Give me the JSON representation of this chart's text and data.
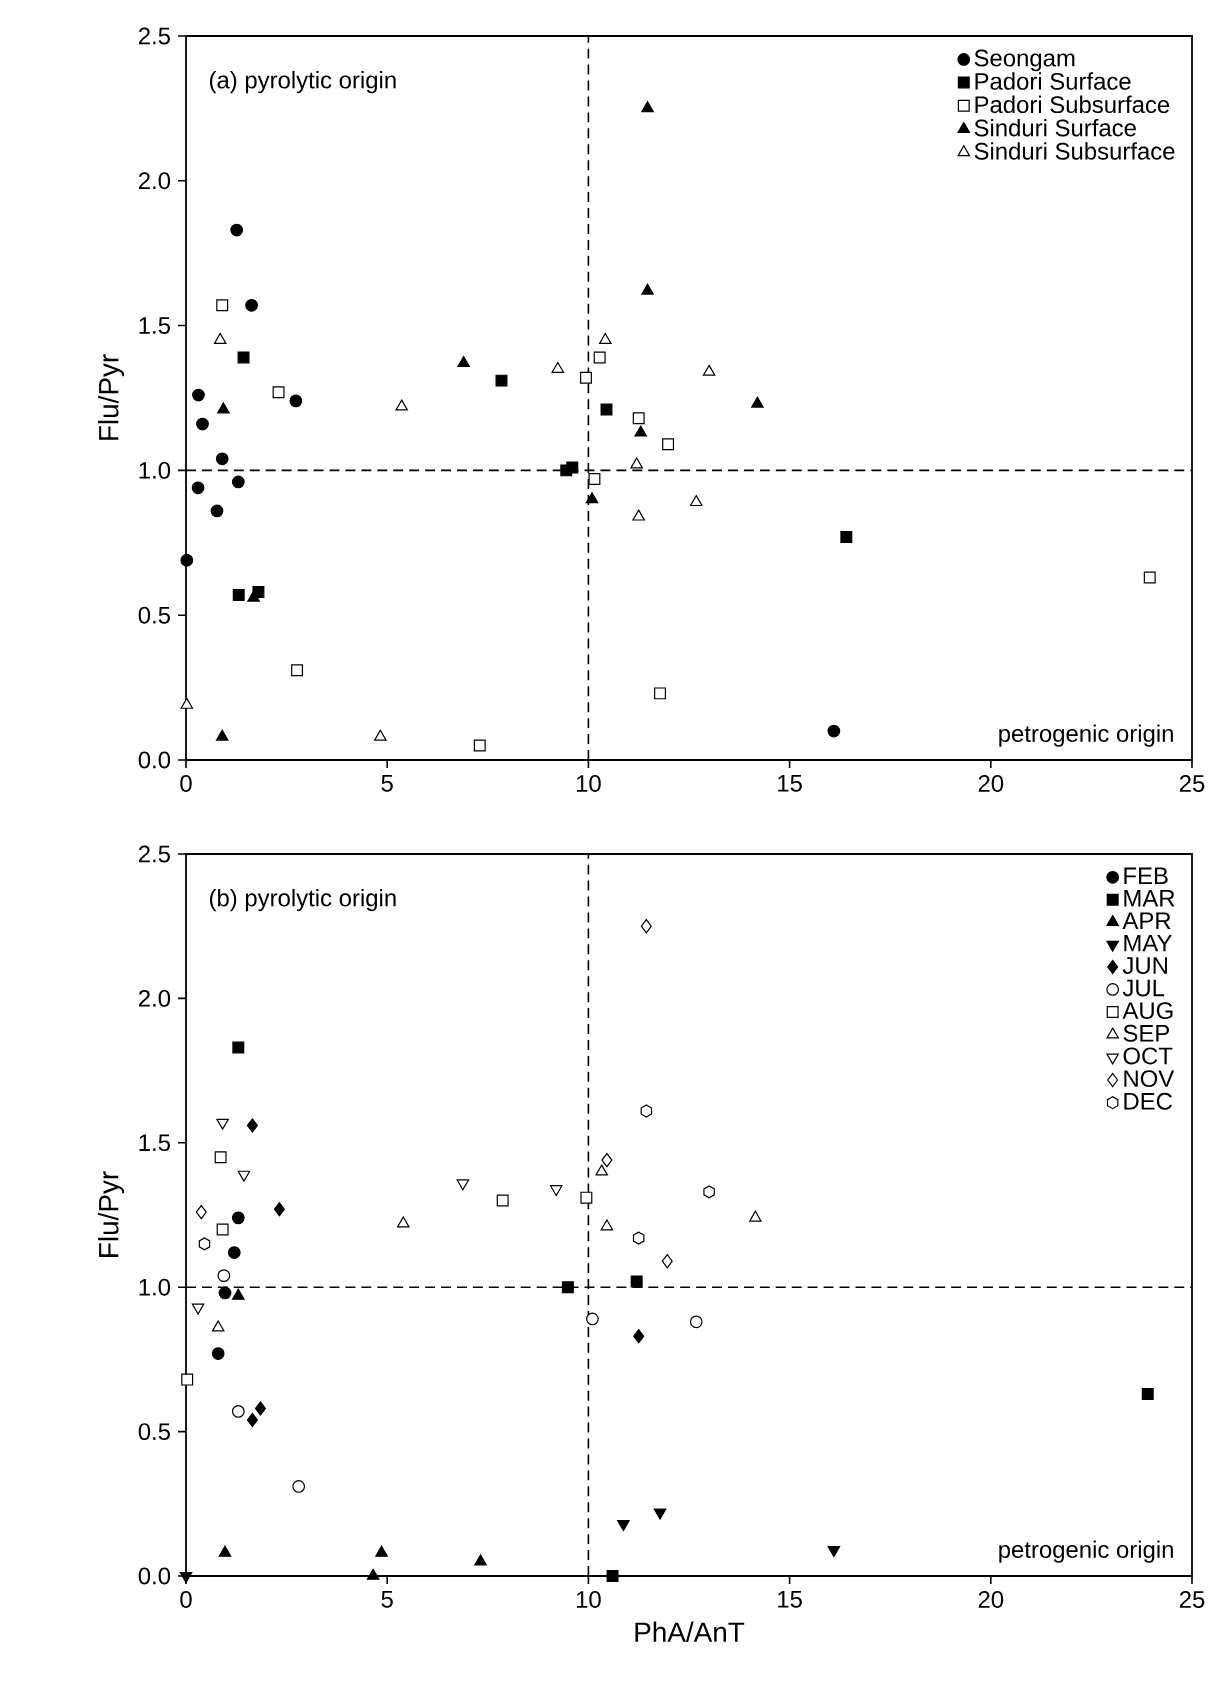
{
  "chart_data": [
    {
      "type": "scatter",
      "ylabel": "Flu/Pyr",
      "xlim": [
        0,
        25
      ],
      "ylim": [
        0,
        2.5
      ],
      "xticks": [
        0,
        5,
        10,
        15,
        20,
        25
      ],
      "yticks": [
        {
          "value": 0,
          "label": "0.0"
        },
        {
          "value": 0.5,
          "label": "0.5"
        },
        {
          "value": 1,
          "label": "1.0"
        },
        {
          "value": 1.5,
          "label": "1.5"
        },
        {
          "value": 2,
          "label": "2.0"
        },
        {
          "value": 2.5,
          "label": "2.5"
        }
      ],
      "annotations": [
        "(a) pyrolytic origin",
        "petrogenic origin"
      ],
      "ref_lines": [
        {
          "axis": "x",
          "value": 10,
          "line_style": "dashed"
        },
        {
          "axis": "y",
          "value": 1,
          "line_style": "dashed"
        }
      ],
      "legend": "top right",
      "series": [
        {
          "name": "Seongam",
          "color": "#000000",
          "marker": "circle",
          "x": [
            1.26,
            1.63,
            0.31,
            0.41,
            0.9,
            0.3,
            1.3,
            0.77,
            0.02,
            2.73,
            16.1
          ],
          "values": [
            1.83,
            1.57,
            1.26,
            1.16,
            1.04,
            0.94,
            0.96,
            0.86,
            0.69,
            1.24,
            0.1
          ]
        },
        {
          "name": "Padori Surface",
          "color": "#000000",
          "marker": "square",
          "x": [
            1.43,
            1.31,
            1.8,
            7.84,
            9.45,
            9.6,
            10.45,
            16.41
          ],
          "values": [
            1.39,
            0.57,
            0.58,
            1.31,
            1.0,
            1.01,
            1.21,
            0.77
          ]
        },
        {
          "name": "Padori Subsurface",
          "color": "#ffffff",
          "marker": "square",
          "x": [
            0.9,
            2.3,
            2.76,
            7.3,
            9.94,
            10.28,
            10.15,
            11.25,
            11.98,
            11.78,
            23.95
          ],
          "values": [
            1.57,
            1.27,
            0.31,
            0.05,
            1.32,
            1.39,
            0.97,
            1.18,
            1.09,
            0.23,
            0.63
          ]
        },
        {
          "name": "Sinduri Surface",
          "color": "#000000",
          "marker": "triangle",
          "x": [
            0.93,
            0.9,
            1.68,
            6.9,
            11.47,
            11.47,
            10.09,
            11.3,
            14.2
          ],
          "values": [
            1.21,
            0.08,
            0.56,
            1.37,
            2.25,
            1.62,
            0.9,
            1.13,
            1.23
          ]
        },
        {
          "name": "Sinduri Subsurface",
          "color": "#ffffff",
          "marker": "triangle",
          "x": [
            0.85,
            0.02,
            4.83,
            5.36,
            9.24,
            10.42,
            11.2,
            11.25,
            12.68,
            13.0
          ],
          "values": [
            1.45,
            0.19,
            0.08,
            1.22,
            1.35,
            1.45,
            1.02,
            0.84,
            0.89,
            1.34
          ]
        }
      ]
    },
    {
      "type": "scatter",
      "xlabel": "PhA/AnT",
      "ylabel": "Flu/Pyr",
      "xlim": [
        0,
        25
      ],
      "ylim": [
        0,
        2.5
      ],
      "xticks": [
        0,
        5,
        10,
        15,
        20,
        25
      ],
      "yticks": [
        {
          "value": 0,
          "label": "0.0"
        },
        {
          "value": 0.5,
          "label": "0.5"
        },
        {
          "value": 1,
          "label": "1.0"
        },
        {
          "value": 1.5,
          "label": "1.5"
        },
        {
          "value": 2,
          "label": "2.0"
        },
        {
          "value": 2.5,
          "label": "2.5"
        }
      ],
      "annotations": [
        "(b) pyrolytic origin",
        "petrogenic origin"
      ],
      "ref_lines": [
        {
          "axis": "x",
          "value": 10,
          "line_style": "dashed"
        },
        {
          "axis": "y",
          "value": 1,
          "line_style": "dashed"
        }
      ],
      "legend": "top right",
      "series": [
        {
          "name": "FEB",
          "color": "#000000",
          "marker": "circle",
          "x": [
            1.3,
            1.2,
            0.97,
            0.8
          ],
          "values": [
            1.24,
            1.12,
            0.98,
            0.77
          ]
        },
        {
          "name": "MAR",
          "color": "#000000",
          "marker": "square",
          "x": [
            1.3,
            9.49,
            11.2,
            23.9,
            10.6
          ],
          "values": [
            1.83,
            1.0,
            1.02,
            0.63,
            0.0
          ]
        },
        {
          "name": "APR",
          "color": "#000000",
          "marker": "triangle",
          "x": [
            1.3,
            0.97,
            4.86,
            7.32,
            4.65
          ],
          "values": [
            0.97,
            0.08,
            0.08,
            0.05,
            0.0
          ]
        },
        {
          "name": "MAY",
          "color": "#000000",
          "marker": "triangle down",
          "x": [
            0.0,
            10.87,
            11.78,
            16.1
          ],
          "values": [
            0.0,
            0.18,
            0.22,
            0.09
          ]
        },
        {
          "name": "JUN",
          "color": "#000000",
          "marker": "diamond",
          "x": [
            1.65,
            2.32,
            1.85,
            1.65,
            11.25
          ],
          "values": [
            1.56,
            1.27,
            0.58,
            0.54,
            0.83
          ]
        },
        {
          "name": "JUL",
          "color": "#ffffff",
          "marker": "circle",
          "x": [
            0.94,
            1.3,
            2.8,
            10.1,
            12.68
          ],
          "values": [
            1.04,
            0.57,
            0.31,
            0.89,
            0.88
          ]
        },
        {
          "name": "AUG",
          "color": "#ffffff",
          "marker": "square",
          "x": [
            0.86,
            0.91,
            0.03,
            7.87,
            9.95
          ],
          "values": [
            1.45,
            1.2,
            0.68,
            1.3,
            1.31
          ]
        },
        {
          "name": "SEP",
          "color": "#ffffff",
          "marker": "triangle",
          "x": [
            0.8,
            5.4,
            10.33,
            10.46,
            14.15
          ],
          "values": [
            0.86,
            1.22,
            1.4,
            1.21,
            1.24
          ]
        },
        {
          "name": "OCT",
          "color": "#ffffff",
          "marker": "triangle down",
          "x": [
            0.91,
            1.44,
            0.3,
            6.88,
            9.2
          ],
          "values": [
            1.57,
            1.39,
            0.93,
            1.36,
            1.34
          ]
        },
        {
          "name": "NOV",
          "color": "#ffffff",
          "marker": "diamond",
          "x": [
            0.38,
            10.46,
            11.44,
            11.96
          ],
          "values": [
            1.26,
            1.44,
            2.25,
            1.09
          ]
        },
        {
          "name": "DEC",
          "color": "#ffffff",
          "x": [
            0.46,
            11.44,
            13.0,
            11.25
          ],
          "values": [
            1.15,
            1.61,
            1.33,
            1.17
          ]
        }
      ]
    }
  ]
}
